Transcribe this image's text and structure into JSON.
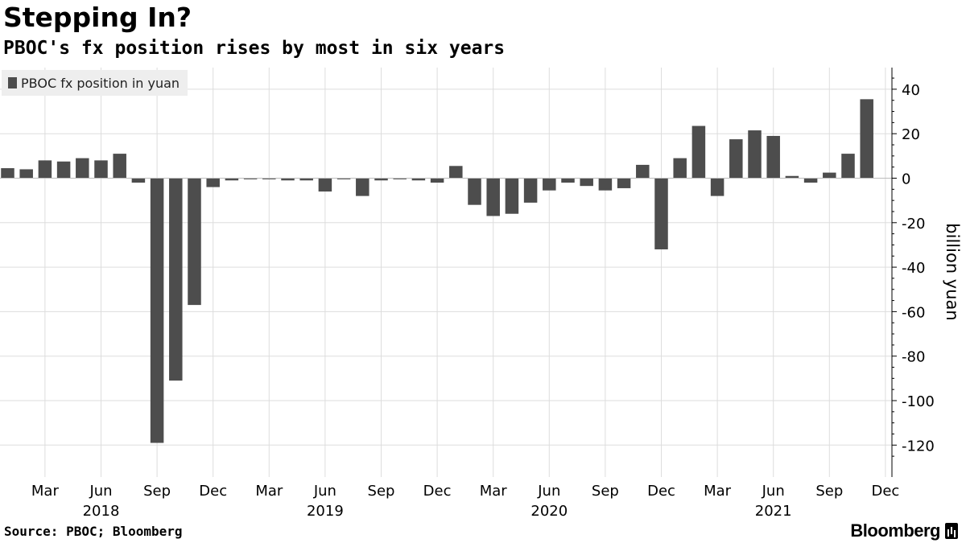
{
  "title": "Stepping In?",
  "subtitle": "PBOC's fx position rises by most in six years",
  "source": "Source: PBOC; Bloomberg",
  "brand": "Bloomberg",
  "colors": {
    "bar": "#4d4d4d",
    "grid": "#dddddd",
    "axis": "#000000",
    "legend_bg": "#eeeeee"
  },
  "chart_data": {
    "type": "bar",
    "title": "Stepping In?",
    "subtitle": "PBOC's fx position rises by most in six years",
    "ylabel": "billion yuan",
    "ylim": [
      -130,
      50
    ],
    "yticks": [
      40,
      20,
      0,
      -20,
      -40,
      -60,
      -80,
      -100,
      -120
    ],
    "y_axis_position": "right",
    "grid": true,
    "legend_position": "top-left",
    "categories": [
      "2018-01",
      "2018-02",
      "2018-03",
      "2018-04",
      "2018-05",
      "2018-06",
      "2018-07",
      "2018-08",
      "2018-09",
      "2018-10",
      "2018-11",
      "2018-12",
      "2019-01",
      "2019-02",
      "2019-03",
      "2019-04",
      "2019-05",
      "2019-06",
      "2019-07",
      "2019-08",
      "2019-09",
      "2019-10",
      "2019-11",
      "2019-12",
      "2020-01",
      "2020-02",
      "2020-03",
      "2020-04",
      "2020-05",
      "2020-06",
      "2020-07",
      "2020-08",
      "2020-09",
      "2020-10",
      "2020-11",
      "2020-12",
      "2021-01",
      "2021-02",
      "2021-03",
      "2021-04",
      "2021-05",
      "2021-06",
      "2021-07",
      "2021-08",
      "2021-09",
      "2021-10",
      "2021-11",
      "2021-12"
    ],
    "series": [
      {
        "name": "PBOC fx position in yuan",
        "values": [
          4.5,
          4,
          8,
          7.5,
          9,
          8,
          11,
          -2,
          -119,
          -91,
          -57,
          -4,
          -1,
          -0.5,
          -0.5,
          -1,
          -1,
          -6,
          -0.5,
          -8,
          -1,
          -0.5,
          -1,
          -2,
          5.5,
          -12,
          -17,
          -16,
          -11,
          -5.5,
          -2,
          -3.5,
          -5.5,
          -4.5,
          6,
          -32,
          9,
          23.5,
          -8,
          17.5,
          21.5,
          19,
          1,
          -2,
          2.5,
          11,
          35.5,
          null
        ]
      }
    ],
    "month_labels": [
      {
        "label": "Mar",
        "index": 2
      },
      {
        "label": "Jun",
        "index": 5
      },
      {
        "label": "Sep",
        "index": 8
      },
      {
        "label": "Dec",
        "index": 11
      },
      {
        "label": "Mar",
        "index": 14
      },
      {
        "label": "Jun",
        "index": 17
      },
      {
        "label": "Sep",
        "index": 20
      },
      {
        "label": "Dec",
        "index": 23
      },
      {
        "label": "Mar",
        "index": 26
      },
      {
        "label": "Jun",
        "index": 29
      },
      {
        "label": "Sep",
        "index": 32
      },
      {
        "label": "Dec",
        "index": 35
      },
      {
        "label": "Mar",
        "index": 38
      },
      {
        "label": "Jun",
        "index": 41
      },
      {
        "label": "Sep",
        "index": 44
      },
      {
        "label": "Dec",
        "index": 47
      }
    ],
    "year_labels": [
      {
        "label": "2018",
        "index": 5
      },
      {
        "label": "2019",
        "index": 17
      },
      {
        "label": "2020",
        "index": 29
      },
      {
        "label": "2021",
        "index": 41
      }
    ]
  }
}
